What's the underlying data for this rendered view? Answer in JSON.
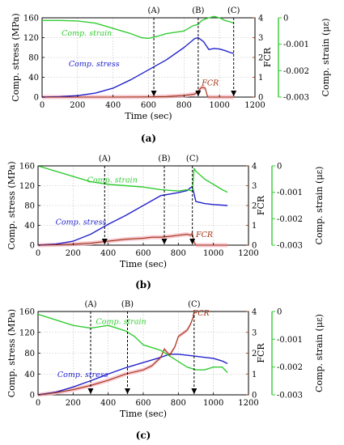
{
  "figure": {
    "background": "#ffffff",
    "colors": {
      "stress": "#2222cc",
      "fcr": "#a03010",
      "strain": "#33cc33",
      "fcr_band": "#f4b8c4"
    }
  },
  "chart_data": [
    {
      "type": "line",
      "panel_label": "(a)",
      "xlabel": "Time (sec)",
      "ylabel": "Comp. stress (MPa)",
      "y2label": "FCR",
      "y3label": "Comp. strain (με)",
      "xlim": [
        0,
        1200
      ],
      "xticks": [
        0,
        200,
        400,
        600,
        800,
        1000,
        1200
      ],
      "ylim": [
        0,
        160
      ],
      "yticks": [
        0,
        40,
        80,
        120,
        160
      ],
      "y2lim": [
        0,
        4
      ],
      "y2ticks": [
        0,
        1,
        2,
        3,
        4
      ],
      "y3lim": [
        -0.003,
        0
      ],
      "y3ticks": [
        0,
        -0.001,
        -0.002,
        -0.003
      ],
      "y3ticklabels": [
        "0",
        "-0.001",
        "-0.002",
        "-0.003"
      ],
      "grid": true,
      "markers": [
        {
          "label": "(A)",
          "x": 630
        },
        {
          "label": "(B)",
          "x": 880
        },
        {
          "label": "(C)",
          "x": 1080
        }
      ],
      "series": [
        {
          "name": "Comp. stress",
          "axis": "y",
          "color": "#2222cc",
          "x": [
            0,
            100,
            200,
            300,
            400,
            500,
            600,
            700,
            800,
            860,
            880,
            910,
            940,
            970,
            1000,
            1030,
            1060,
            1080
          ],
          "y": [
            0,
            1,
            3,
            8,
            18,
            35,
            55,
            75,
            100,
            118,
            120,
            112,
            96,
            98,
            97,
            94,
            90,
            88
          ]
        },
        {
          "name": "FCR",
          "axis": "y2",
          "color": "#a03010",
          "x": [
            0,
            200,
            400,
            600,
            700,
            800,
            860,
            880,
            900,
            920,
            930,
            935,
            945,
            1000,
            1080
          ],
          "y": [
            0,
            0,
            0,
            0.01,
            0.03,
            0.08,
            0.15,
            0.3,
            0.5,
            0.45,
            0.1,
            0,
            0,
            0,
            0
          ]
        },
        {
          "name": "Comp. strain",
          "axis": "y3",
          "color": "#33cc33",
          "x": [
            0,
            100,
            200,
            300,
            400,
            500,
            560,
            600,
            650,
            700,
            750,
            800,
            850,
            880,
            900,
            940,
            970,
            1000,
            1030,
            1060,
            1080
          ],
          "y": [
            -0.0001,
            -0.0001,
            -0.00012,
            -0.0002,
            -0.0004,
            -0.0006,
            -0.00075,
            -0.00078,
            -0.0007,
            -0.0006,
            -0.00055,
            -0.0005,
            -0.0003,
            -0.00025,
            -0.0001,
            0,
            5e-05,
            0,
            -0.0001,
            -0.00015,
            -0.0002
          ]
        }
      ],
      "annotations": [
        {
          "text": "Comp. strain",
          "series": 2,
          "x": 110,
          "y": -0.00068,
          "axis": "y3"
        },
        {
          "text": "Comp. stress",
          "series": 0,
          "x": 150,
          "y": 62,
          "axis": "y"
        },
        {
          "text": "FCR",
          "series": 1,
          "x": 900,
          "y": 0.6,
          "axis": "y2"
        }
      ]
    },
    {
      "type": "line",
      "panel_label": "(b)",
      "xlabel": "Time (sec)",
      "ylabel": "Comp. stress (MPa)",
      "y2label": "FCR",
      "y3label": "Comp. strain (με)",
      "xlim": [
        0,
        1200
      ],
      "xticks": [
        0,
        200,
        400,
        600,
        800,
        1000,
        1200
      ],
      "ylim": [
        0,
        160
      ],
      "yticks": [
        0,
        40,
        80,
        120,
        160
      ],
      "y2lim": [
        0,
        4
      ],
      "y2ticks": [
        0,
        1,
        2,
        3,
        4
      ],
      "y3lim": [
        -0.003,
        0
      ],
      "y3ticks": [
        0,
        -0.001,
        -0.002,
        -0.003
      ],
      "y3ticklabels": [
        "0",
        "-0.001",
        "-0.002",
        "-0.003"
      ],
      "grid": true,
      "markers": [
        {
          "label": "(A)",
          "x": 380
        },
        {
          "label": "(B)",
          "x": 720
        },
        {
          "label": "(C)",
          "x": 880
        }
      ],
      "series": [
        {
          "name": "Comp. stress",
          "axis": "y",
          "color": "#2222cc",
          "x": [
            0,
            100,
            200,
            300,
            400,
            500,
            600,
            650,
            700,
            750,
            800,
            850,
            870,
            880,
            900,
            950,
            1000,
            1080
          ],
          "y": [
            0,
            2,
            8,
            22,
            42,
            60,
            80,
            90,
            100,
            103,
            106,
            110,
            116,
            118,
            88,
            84,
            82,
            80
          ]
        },
        {
          "name": "FCR",
          "axis": "y2",
          "color": "#a03010",
          "x": [
            0,
            100,
            200,
            300,
            400,
            500,
            600,
            650,
            700,
            760,
            800,
            850,
            870,
            880,
            890,
            900,
            1080
          ],
          "y": [
            0,
            0.02,
            0.05,
            0.1,
            0.2,
            0.3,
            0.35,
            0.4,
            0.4,
            0.45,
            0.5,
            0.55,
            0.5,
            0.6,
            0.15,
            0,
            0
          ]
        },
        {
          "name": "Comp. strain",
          "axis": "y3",
          "color": "#33cc33",
          "x": [
            0,
            100,
            200,
            300,
            400,
            500,
            600,
            700,
            800,
            850,
            880,
            890,
            900,
            950,
            1000,
            1050,
            1080
          ],
          "y": [
            0,
            -0.0002,
            -0.0004,
            -0.0006,
            -0.0007,
            -0.00075,
            -0.0008,
            -0.0009,
            -0.00095,
            -0.0009,
            -0.00095,
            -0.0001,
            -0.0002,
            -0.0005,
            -0.0007,
            -0.0009,
            -0.001
          ]
        }
      ],
      "annotations": [
        {
          "text": "Comp. strain",
          "series": 2,
          "x": 280,
          "y": -0.00062,
          "axis": "y3"
        },
        {
          "text": "Comp. stress",
          "series": 0,
          "x": 100,
          "y": 42,
          "axis": "y"
        },
        {
          "text": "FCR",
          "series": 1,
          "x": 900,
          "y": 0.4,
          "axis": "y2"
        }
      ]
    },
    {
      "type": "line",
      "panel_label": "(c)",
      "xlabel": "Time (sec)",
      "ylabel": "Comp. stress (MPa)",
      "y2label": "FCR",
      "y3label": "Comp. strain (με)",
      "xlim": [
        0,
        1200
      ],
      "xticks": [
        0,
        200,
        400,
        600,
        800,
        1000,
        1200
      ],
      "ylim": [
        0,
        160
      ],
      "yticks": [
        0,
        40,
        80,
        120,
        160
      ],
      "y2lim": [
        0,
        4
      ],
      "y2ticks": [
        0,
        1,
        2,
        3,
        4
      ],
      "y3lim": [
        -0.003,
        0
      ],
      "y3ticks": [
        0,
        -0.001,
        -0.002,
        -0.003
      ],
      "y3ticklabels": [
        "0",
        "-0.001",
        "-0.002",
        "-0.003"
      ],
      "grid": true,
      "markers": [
        {
          "label": "(A)",
          "x": 300
        },
        {
          "label": "(B)",
          "x": 510
        },
        {
          "label": "(C)",
          "x": 890
        }
      ],
      "series": [
        {
          "name": "Comp. stress",
          "axis": "y",
          "color": "#2222cc",
          "x": [
            0,
            100,
            200,
            300,
            400,
            500,
            600,
            700,
            750,
            800,
            850,
            900,
            950,
            1000,
            1050,
            1080
          ],
          "y": [
            0,
            5,
            15,
            27,
            40,
            52,
            62,
            72,
            78,
            78,
            76,
            74,
            72,
            70,
            65,
            60
          ]
        },
        {
          "name": "FCR",
          "axis": "y2",
          "color": "#a03010",
          "x": [
            0,
            100,
            200,
            300,
            400,
            500,
            600,
            650,
            700,
            720,
            750,
            780,
            800,
            850,
            870,
            890
          ],
          "y": [
            0,
            0.1,
            0.25,
            0.45,
            0.7,
            1.0,
            1.2,
            1.4,
            1.8,
            2.2,
            1.9,
            2.3,
            2.8,
            3.1,
            3.4,
            3.85
          ]
        },
        {
          "name": "Comp. strain",
          "axis": "y3",
          "color": "#33cc33",
          "x": [
            0,
            100,
            200,
            300,
            400,
            500,
            550,
            600,
            700,
            750,
            800,
            850,
            900,
            950,
            1000,
            1050,
            1080
          ],
          "y": [
            -0.0001,
            -0.0003,
            -0.0005,
            -0.0006,
            -0.0005,
            -0.0007,
            -0.0009,
            -0.0012,
            -0.0014,
            -0.0016,
            -0.0018,
            -0.002,
            -0.0021,
            -0.0021,
            -0.002,
            -0.002,
            -0.0022
          ]
        }
      ],
      "annotations": [
        {
          "text": "Comp. strain",
          "series": 2,
          "x": 330,
          "y": -0.00045,
          "axis": "y3"
        },
        {
          "text": "Comp. stress",
          "series": 0,
          "x": 110,
          "y": 34,
          "axis": "y"
        },
        {
          "text": "FCR",
          "series": 1,
          "x": 880,
          "y": 3.8,
          "axis": "y2"
        }
      ]
    }
  ]
}
